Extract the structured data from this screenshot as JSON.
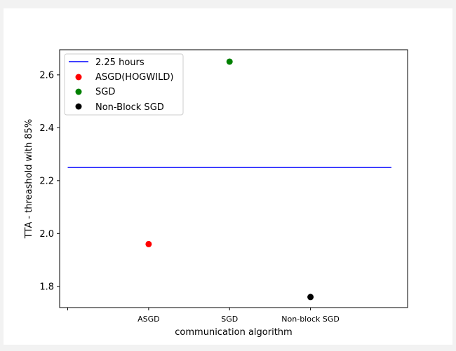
{
  "chart_data": {
    "type": "scatter",
    "title": "",
    "xlabel": "communication algorithm",
    "ylabel": "TTA - threashold with 85%",
    "categories": [
      "",
      "ASGD",
      "SGD",
      "Non-block SGD"
    ],
    "xlim": [
      -0.1,
      4.2
    ],
    "ylim": [
      1.72,
      2.695
    ],
    "yticks": [
      1.8,
      2.0,
      2.2,
      2.4,
      2.6
    ],
    "ytick_labels": [
      "1.8",
      "2.0",
      "2.2",
      "2.4",
      "2.6"
    ],
    "grid": false,
    "legend_position": "top-left",
    "reference_line": {
      "label": "2.25 hours",
      "y": 2.25,
      "x_range": [
        0,
        4
      ],
      "color": "#0000ff"
    },
    "series": [
      {
        "name": "ASGD(HOGWILD)",
        "x": 1,
        "y": 1.96,
        "color": "#ff0000"
      },
      {
        "name": "SGD",
        "x": 2,
        "y": 2.65,
        "color": "#008000"
      },
      {
        "name": "Non-Block SGD",
        "x": 3,
        "y": 1.76,
        "color": "#000000"
      }
    ]
  }
}
